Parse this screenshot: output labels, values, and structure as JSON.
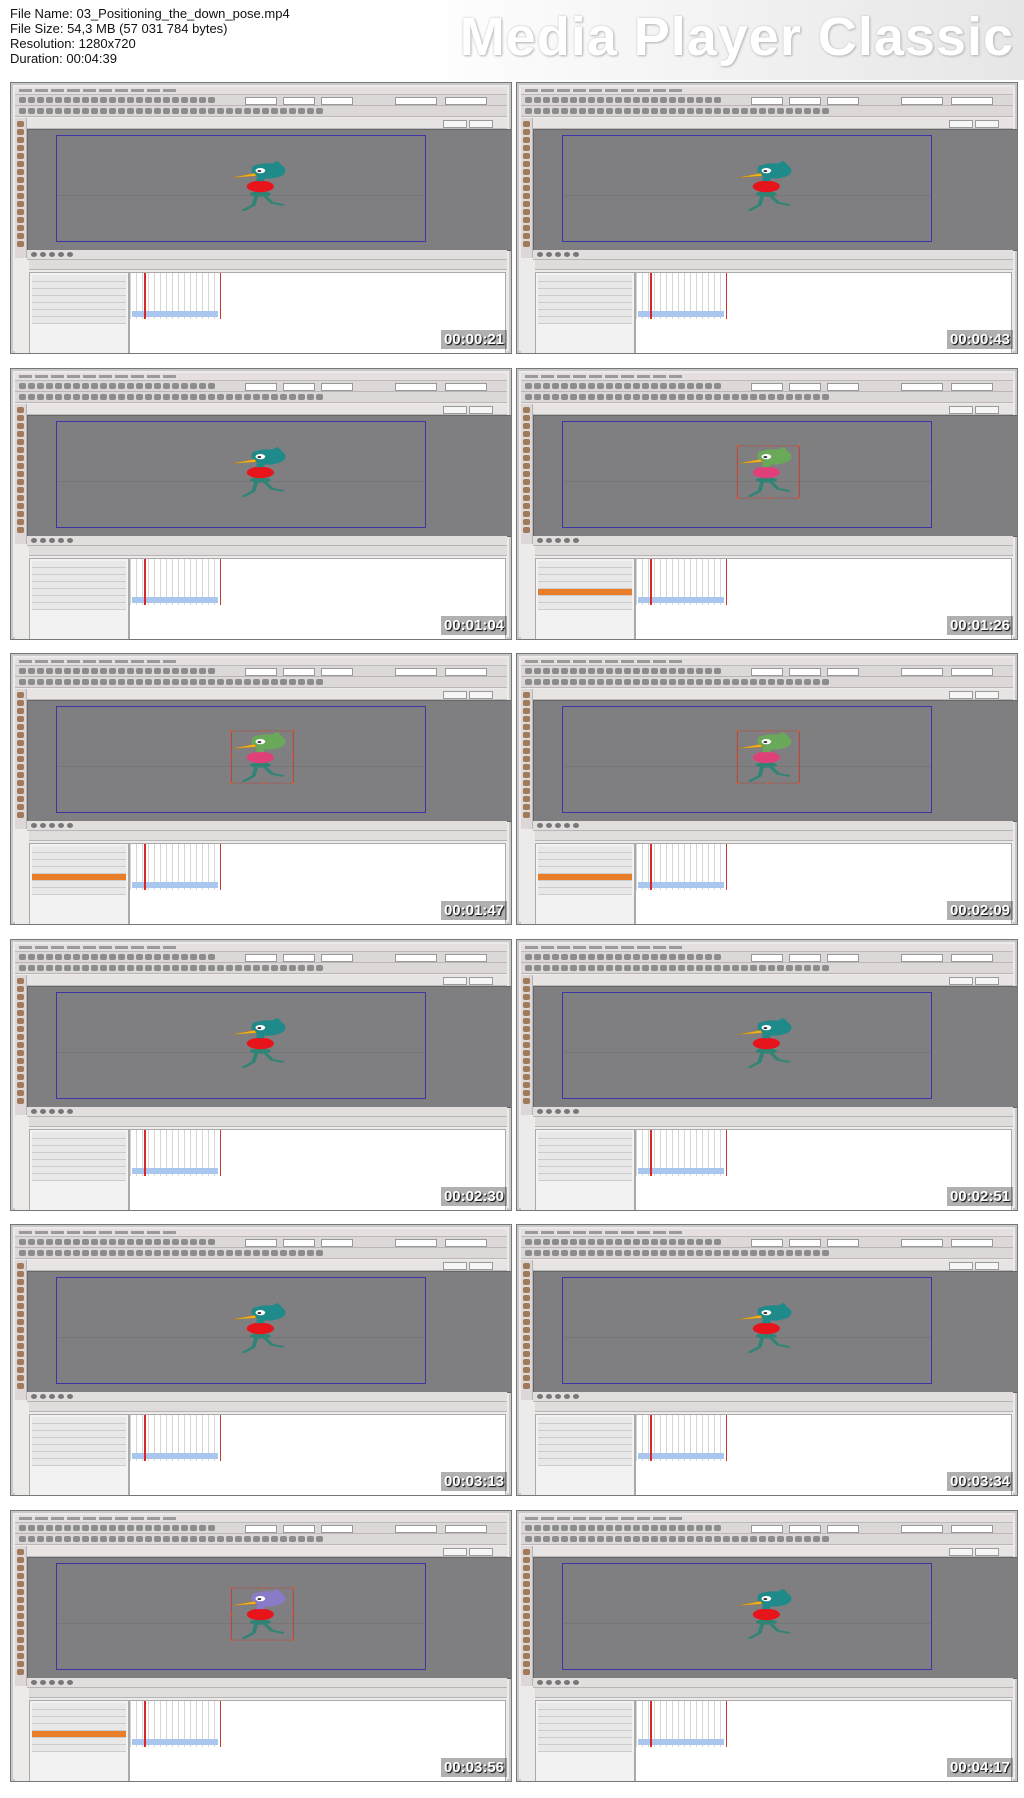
{
  "header": {
    "file_name": "File Name: 03_Positioning_the_down_pose.mp4",
    "file_size": "File Size: 54,3 MB (57 031 784 bytes)",
    "resolution": "Resolution: 1280x720",
    "duration": "Duration: 00:04:39",
    "brand": "Media Player Classic"
  },
  "colors": {
    "stage_bg": "#7f7e80",
    "stage_frame": "#3b35a8",
    "duck_head": "#1f8a8a",
    "duck_head_selected": "#6aa85a",
    "duck_head_purple": "#8a7ac8",
    "duck_shirt": "#e8141b",
    "duck_shirt_selected": "#e0407a",
    "duck_beak": "#f3b21a",
    "duck_legs": "#2f8476",
    "timeline_selection": "#e87d2a",
    "playhead": "#d8262a"
  },
  "thumbnails": [
    {
      "timestamp": "00:00:21",
      "state": "normal",
      "layer_selected": false
    },
    {
      "timestamp": "00:00:43",
      "state": "normal",
      "layer_selected": false
    },
    {
      "timestamp": "00:01:04",
      "state": "normal",
      "layer_selected": false
    },
    {
      "timestamp": "00:01:26",
      "state": "selected",
      "layer_selected": true
    },
    {
      "timestamp": "00:01:47",
      "state": "selected",
      "layer_selected": true
    },
    {
      "timestamp": "00:02:09",
      "state": "selected",
      "layer_selected": true
    },
    {
      "timestamp": "00:02:30",
      "state": "normal",
      "layer_selected": false
    },
    {
      "timestamp": "00:02:51",
      "state": "normal",
      "layer_selected": false
    },
    {
      "timestamp": "00:03:13",
      "state": "normal",
      "layer_selected": false
    },
    {
      "timestamp": "00:03:34",
      "state": "normal",
      "layer_selected": false
    },
    {
      "timestamp": "00:03:56",
      "state": "purple",
      "layer_selected": true
    },
    {
      "timestamp": "00:04:17",
      "state": "normal",
      "layer_selected": false
    }
  ]
}
